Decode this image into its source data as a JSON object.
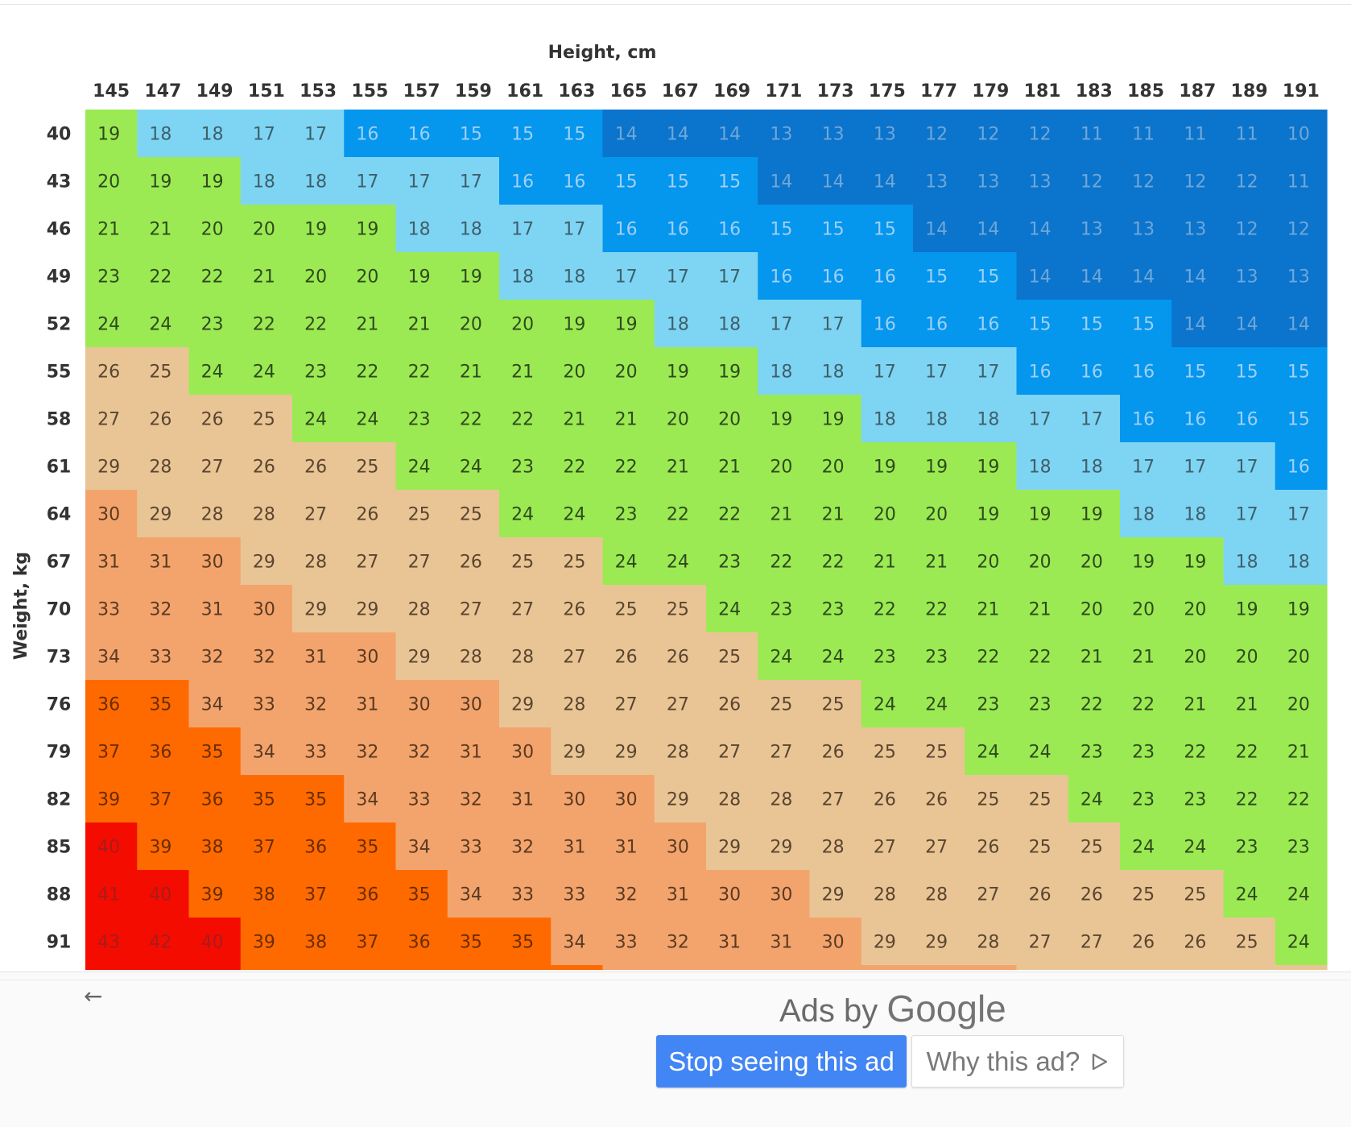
{
  "chart_data": {
    "type": "heatmap",
    "title": "",
    "xlabel": "Height, cm",
    "ylabel": "Weight, kg",
    "x": [
      145,
      147,
      149,
      151,
      153,
      155,
      157,
      159,
      161,
      163,
      165,
      167,
      169,
      171,
      173,
      175,
      177,
      179,
      181,
      183,
      185,
      187,
      189,
      191
    ],
    "y": [
      40,
      43,
      46,
      49,
      52,
      55,
      58,
      61,
      64,
      67,
      70,
      73,
      76,
      79,
      82,
      85,
      88,
      91
    ],
    "values": [
      [
        19,
        18,
        18,
        17,
        17,
        16,
        16,
        15,
        15,
        15,
        14,
        14,
        14,
        13,
        13,
        13,
        12,
        12,
        12,
        11,
        11,
        11,
        11,
        10
      ],
      [
        20,
        19,
        19,
        18,
        18,
        17,
        17,
        17,
        16,
        16,
        15,
        15,
        15,
        14,
        14,
        14,
        13,
        13,
        13,
        12,
        12,
        12,
        12,
        11
      ],
      [
        21,
        21,
        20,
        20,
        19,
        19,
        18,
        18,
        17,
        17,
        16,
        16,
        16,
        15,
        15,
        15,
        14,
        14,
        14,
        13,
        13,
        13,
        12,
        12
      ],
      [
        23,
        22,
        22,
        21,
        20,
        20,
        19,
        19,
        18,
        18,
        17,
        17,
        17,
        16,
        16,
        16,
        15,
        15,
        14,
        14,
        14,
        14,
        13,
        13
      ],
      [
        24,
        24,
        23,
        22,
        22,
        21,
        21,
        20,
        20,
        19,
        19,
        18,
        18,
        17,
        17,
        16,
        16,
        16,
        15,
        15,
        15,
        14,
        14,
        14
      ],
      [
        26,
        25,
        24,
        24,
        23,
        22,
        22,
        21,
        21,
        20,
        20,
        19,
        19,
        18,
        18,
        17,
        17,
        17,
        16,
        16,
        16,
        15,
        15,
        15
      ],
      [
        27,
        26,
        26,
        25,
        24,
        24,
        23,
        22,
        22,
        21,
        21,
        20,
        20,
        19,
        19,
        18,
        18,
        18,
        17,
        17,
        16,
        16,
        16,
        15
      ],
      [
        29,
        28,
        27,
        26,
        26,
        25,
        24,
        24,
        23,
        22,
        22,
        21,
        21,
        20,
        20,
        19,
        19,
        19,
        18,
        18,
        17,
        17,
        17,
        16
      ],
      [
        30,
        29,
        28,
        28,
        27,
        26,
        25,
        25,
        24,
        24,
        23,
        22,
        22,
        21,
        21,
        20,
        20,
        19,
        19,
        19,
        18,
        18,
        17,
        17
      ],
      [
        31,
        31,
        30,
        29,
        28,
        27,
        27,
        26,
        25,
        25,
        24,
        24,
        23,
        22,
        22,
        21,
        21,
        20,
        20,
        20,
        19,
        19,
        18,
        18
      ],
      [
        33,
        32,
        31,
        30,
        29,
        29,
        28,
        27,
        27,
        26,
        25,
        25,
        24,
        23,
        23,
        22,
        22,
        21,
        21,
        20,
        20,
        20,
        19,
        19
      ],
      [
        34,
        33,
        32,
        32,
        31,
        30,
        29,
        28,
        28,
        27,
        26,
        26,
        25,
        24,
        24,
        23,
        23,
        22,
        22,
        21,
        21,
        20,
        20,
        20
      ],
      [
        36,
        35,
        34,
        33,
        32,
        31,
        30,
        30,
        29,
        28,
        27,
        27,
        26,
        25,
        25,
        24,
        24,
        23,
        23,
        22,
        22,
        21,
        21,
        20
      ],
      [
        37,
        36,
        35,
        34,
        33,
        32,
        32,
        31,
        30,
        29,
        29,
        28,
        27,
        27,
        26,
        25,
        25,
        24,
        24,
        23,
        23,
        22,
        22,
        21
      ],
      [
        39,
        37,
        36,
        35,
        35,
        34,
        33,
        32,
        31,
        30,
        30,
        29,
        28,
        28,
        27,
        26,
        26,
        25,
        25,
        24,
        23,
        23,
        22,
        22
      ],
      [
        40,
        39,
        38,
        37,
        36,
        35,
        34,
        33,
        32,
        31,
        31,
        30,
        29,
        29,
        28,
        27,
        27,
        26,
        25,
        25,
        24,
        24,
        23,
        23
      ],
      [
        41,
        40,
        39,
        38,
        37,
        36,
        35,
        34,
        33,
        33,
        32,
        31,
        30,
        30,
        29,
        28,
        28,
        27,
        26,
        26,
        25,
        25,
        24,
        24
      ],
      [
        43,
        42,
        40,
        39,
        38,
        37,
        36,
        35,
        35,
        34,
        33,
        32,
        31,
        31,
        30,
        29,
        29,
        28,
        27,
        27,
        26,
        26,
        25,
        24
      ]
    ],
    "color_bins": [
      {
        "max": 14,
        "color": "#0b74cc",
        "text": "#6fa7d8"
      },
      {
        "max": 16,
        "color": "#0596ee",
        "text": "#9fd0f4"
      },
      {
        "max": 18,
        "color": "#7ed5f3",
        "text": "#3f5f6c"
      },
      {
        "max": 24,
        "color": "#9bea53",
        "text": "#2f4a1c"
      },
      {
        "max": 29,
        "color": "#e9c595",
        "text": "#5a4530"
      },
      {
        "max": 34,
        "color": "#f3a46c",
        "text": "#5a3a22"
      },
      {
        "max": 39,
        "color": "#ff6a00",
        "text": "#6a2c00"
      },
      {
        "max": 99,
        "color": "#f40c00",
        "text": "#a71c1c"
      }
    ],
    "grid": false,
    "legend": "none"
  },
  "ad": {
    "back_icon": "←",
    "ads_by": "Ads by",
    "brand": "Google",
    "stop_label": "Stop seeing this ad",
    "why_label": "Why this ad?"
  }
}
